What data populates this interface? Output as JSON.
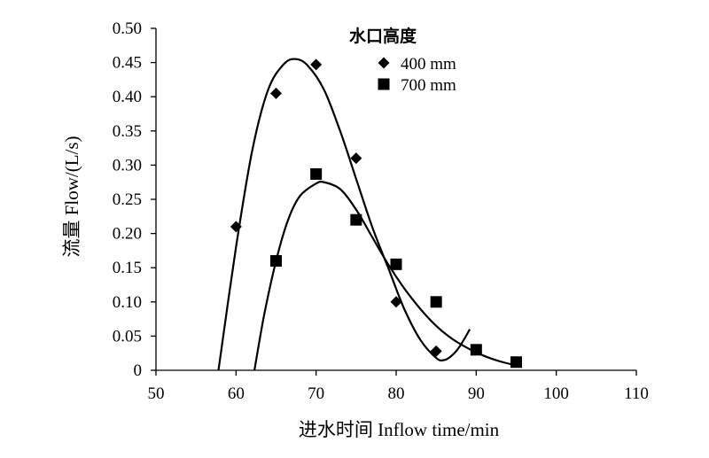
{
  "chart_data": {
    "type": "scatter",
    "xlabel": "进水时间 Inflow time/min",
    "ylabel": "流量 Flow/(L/s)",
    "xlim": [
      50,
      110
    ],
    "ylim": [
      0,
      0.5
    ],
    "x_ticks": [
      "50",
      "60",
      "70",
      "80",
      "90",
      "100",
      "110"
    ],
    "y_ticks": [
      "0",
      "0.05",
      "0.10",
      "0.15",
      "0.20",
      "0.25",
      "0.30",
      "0.35",
      "0.40",
      "0.45",
      "0.50"
    ],
    "legend": {
      "title": "水口高度",
      "placement": "top-right"
    },
    "series": [
      {
        "name": "400 mm",
        "marker": "diamond",
        "x": [
          60,
          65,
          70,
          75,
          80,
          85
        ],
        "y": [
          0.21,
          0.405,
          0.447,
          0.31,
          0.1,
          0.028
        ],
        "trend_x": [
          57.8,
          60,
          62,
          64,
          66,
          67.5,
          69,
          71,
          73,
          75,
          77,
          79,
          81,
          83,
          85,
          86,
          87,
          88,
          89.2
        ],
        "trend_y": [
          0,
          0.18,
          0.32,
          0.41,
          0.448,
          0.455,
          0.445,
          0.41,
          0.35,
          0.28,
          0.21,
          0.15,
          0.09,
          0.045,
          0.018,
          0.015,
          0.022,
          0.036,
          0.06
        ]
      },
      {
        "name": "700 mm",
        "marker": "square",
        "x": [
          65,
          70,
          75,
          80,
          85,
          90,
          95
        ],
        "y": [
          0.16,
          0.287,
          0.22,
          0.155,
          0.1,
          0.03,
          0.012
        ],
        "trend_x": [
          62.3,
          63.5,
          65,
          66.5,
          68,
          70,
          71,
          73,
          75,
          77,
          79,
          81,
          83,
          85,
          87,
          89,
          91,
          93,
          95
        ],
        "trend_y": [
          0,
          0.08,
          0.16,
          0.22,
          0.255,
          0.273,
          0.275,
          0.265,
          0.235,
          0.195,
          0.155,
          0.12,
          0.09,
          0.065,
          0.046,
          0.032,
          0.021,
          0.013,
          0.007
        ]
      }
    ]
  }
}
